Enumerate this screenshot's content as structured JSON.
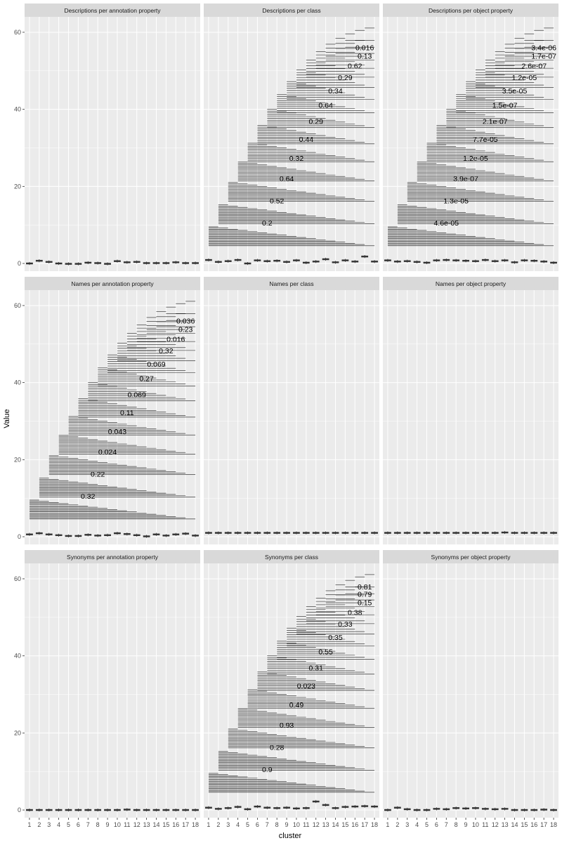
{
  "chart_data": {
    "type": "faceted-boxplot",
    "xlabel": "cluster",
    "ylabel": "Value",
    "ylim": [
      -2,
      64
    ],
    "y_ticks": [
      0,
      20,
      40,
      60
    ],
    "x_categories": [
      "1",
      "2",
      "3",
      "4",
      "5",
      "6",
      "7",
      "8",
      "9",
      "10",
      "11",
      "12",
      "13",
      "14",
      "15",
      "16",
      "17",
      "18"
    ],
    "colors": {
      "panel_bg": "#ebebeb",
      "strip_bg": "#d9d9d9",
      "grid": "#ffffff",
      "ink": "#333333"
    },
    "facets": [
      {
        "title": "Descriptions per annotation property",
        "medians": [
          0,
          0.7,
          0.4,
          0,
          -0.1,
          -0.1,
          0.2,
          0.1,
          -0.1,
          0.6,
          0.3,
          0.4,
          0.1,
          0.1,
          0.1,
          0.3,
          0.1,
          0.1
        ],
        "brackets": [],
        "pvalues": []
      },
      {
        "title": "Descriptions per class",
        "medians": [
          0.9,
          0.4,
          0.6,
          0.9,
          0,
          0.8,
          0.6,
          0.7,
          0.4,
          0.8,
          0.2,
          0.5,
          1.1,
          0.3,
          0.8,
          0.5,
          1.8,
          0.5
        ],
        "brackets": [
          {
            "start": 1,
            "y": 9.5
          },
          {
            "start": 2,
            "y": 15.2
          },
          {
            "start": 3,
            "y": 21
          },
          {
            "start": 4,
            "y": 26.3
          },
          {
            "start": 5,
            "y": 31.2
          },
          {
            "start": 6,
            "y": 35.8
          },
          {
            "start": 7,
            "y": 40
          },
          {
            "start": 8,
            "y": 43.8
          },
          {
            "start": 9,
            "y": 47.2
          },
          {
            "start": 10,
            "y": 50.2
          },
          {
            "start": 11,
            "y": 52.8
          },
          {
            "start": 12,
            "y": 55
          },
          {
            "start": 13,
            "y": 56.9
          },
          {
            "start": 14,
            "y": 58.4
          },
          {
            "start": 15,
            "y": 59.6
          },
          {
            "start": 16,
            "y": 60.5
          },
          {
            "start": 17,
            "y": 61.1
          }
        ],
        "pvalues": [
          "0.2",
          "0.52",
          "0.64",
          "0.32",
          "0.44",
          "0.29",
          "0.64",
          "0.34",
          "0.29",
          "0.62",
          "0.13",
          "0.016"
        ]
      },
      {
        "title": "Descriptions per object property",
        "medians": [
          0.8,
          0.5,
          0.6,
          0.4,
          0.2,
          0.8,
          0.9,
          0.8,
          0.7,
          0.6,
          0.9,
          0.6,
          0.8,
          0.3,
          0.8,
          0.7,
          0.5,
          0.2
        ],
        "brackets": [
          {
            "start": 1,
            "y": 9.5
          },
          {
            "start": 2,
            "y": 15.2
          },
          {
            "start": 3,
            "y": 21
          },
          {
            "start": 4,
            "y": 26.3
          },
          {
            "start": 5,
            "y": 31.2
          },
          {
            "start": 6,
            "y": 35.8
          },
          {
            "start": 7,
            "y": 40
          },
          {
            "start": 8,
            "y": 43.8
          },
          {
            "start": 9,
            "y": 47.2
          },
          {
            "start": 10,
            "y": 50.2
          },
          {
            "start": 11,
            "y": 52.8
          },
          {
            "start": 12,
            "y": 55
          },
          {
            "start": 13,
            "y": 56.9
          },
          {
            "start": 14,
            "y": 58.4
          },
          {
            "start": 15,
            "y": 59.6
          },
          {
            "start": 16,
            "y": 60.5
          },
          {
            "start": 17,
            "y": 61.1
          }
        ],
        "pvalues": [
          "4.6e-05",
          "1.3e-05",
          "3.9e-07",
          "1.2e-05",
          "7.7e-05",
          "2.1e-07",
          "1.5e-07",
          "3.5e-05",
          "1.2e-05",
          "2.6e-07",
          "1.7e-07",
          "3.4e-06"
        ]
      },
      {
        "title": "Names per annotation property",
        "medians": [
          0.6,
          0.9,
          0.6,
          0.4,
          0.2,
          0.2,
          0.5,
          0.3,
          0.4,
          0.9,
          0.7,
          0.4,
          0.1,
          0.6,
          0.3,
          0.6,
          0.8,
          0.3
        ],
        "brackets": [
          {
            "start": 1,
            "y": 9.5
          },
          {
            "start": 2,
            "y": 15.2
          },
          {
            "start": 3,
            "y": 21
          },
          {
            "start": 4,
            "y": 26.3
          },
          {
            "start": 5,
            "y": 31.2
          },
          {
            "start": 6,
            "y": 35.8
          },
          {
            "start": 7,
            "y": 40
          },
          {
            "start": 8,
            "y": 43.8
          },
          {
            "start": 9,
            "y": 47.2
          },
          {
            "start": 10,
            "y": 50.2
          },
          {
            "start": 11,
            "y": 52.8
          },
          {
            "start": 12,
            "y": 55
          },
          {
            "start": 13,
            "y": 56.9
          },
          {
            "start": 14,
            "y": 58.4
          },
          {
            "start": 15,
            "y": 59.6
          },
          {
            "start": 16,
            "y": 60.5
          },
          {
            "start": 17,
            "y": 61.1
          }
        ],
        "pvalues": [
          "0.32",
          "0.22",
          "0.024",
          "0.043",
          "0.11",
          "0.069",
          "0.27",
          "0.069",
          "0.32",
          "0.016",
          "0.23",
          "0.036"
        ]
      },
      {
        "title": "Names per class",
        "medians": [
          1,
          1,
          1,
          1,
          1,
          1,
          1,
          1,
          1,
          1,
          1,
          1,
          1,
          1,
          1,
          1,
          1,
          1
        ],
        "brackets": [],
        "pvalues": []
      },
      {
        "title": "Names per object property",
        "medians": [
          1,
          1,
          1,
          1,
          1,
          1,
          1,
          1,
          1,
          1,
          1,
          1,
          1.1,
          1,
          1,
          1,
          1,
          1
        ],
        "brackets": [],
        "pvalues": []
      },
      {
        "title": "Synonyms per annotation property",
        "medians": [
          0,
          0,
          0,
          0,
          0,
          0,
          0,
          0,
          0,
          0,
          0.1,
          0,
          0,
          0,
          0,
          0,
          0,
          0
        ],
        "brackets": [],
        "pvalues": []
      },
      {
        "title": "Synonyms per class",
        "medians": [
          0.6,
          0.3,
          0.5,
          0.8,
          0.2,
          0.9,
          0.6,
          0.5,
          0.6,
          0.4,
          0.5,
          2.2,
          1.3,
          0.5,
          0.8,
          0.9,
          1.0,
          0.9
        ],
        "brackets": [
          {
            "start": 1,
            "y": 9.5
          },
          {
            "start": 2,
            "y": 15.2
          },
          {
            "start": 3,
            "y": 21
          },
          {
            "start": 4,
            "y": 26.3
          },
          {
            "start": 5,
            "y": 31.2
          },
          {
            "start": 6,
            "y": 35.8
          },
          {
            "start": 7,
            "y": 40
          },
          {
            "start": 8,
            "y": 43.8
          },
          {
            "start": 9,
            "y": 47.2
          },
          {
            "start": 10,
            "y": 50.2
          },
          {
            "start": 11,
            "y": 52.8
          },
          {
            "start": 12,
            "y": 55
          },
          {
            "start": 13,
            "y": 56.9
          },
          {
            "start": 14,
            "y": 58.4
          },
          {
            "start": 15,
            "y": 59.6
          },
          {
            "start": 16,
            "y": 60.5
          },
          {
            "start": 17,
            "y": 61.1
          }
        ],
        "pvalues": [
          "0.9",
          "0.28",
          "0.93",
          "0.49",
          "0.023",
          "0.31",
          "0.55",
          "0.35",
          "0.33",
          "0.38",
          "0.15",
          "0.79",
          "0.81"
        ]
      },
      {
        "title": "Synonyms per object property",
        "medians": [
          0,
          0.6,
          0.2,
          0,
          0,
          0.3,
          0.2,
          0.5,
          0.4,
          0.5,
          0.3,
          0.2,
          0.3,
          0,
          0,
          0,
          0.1,
          0
        ],
        "brackets": [],
        "pvalues": []
      }
    ]
  }
}
